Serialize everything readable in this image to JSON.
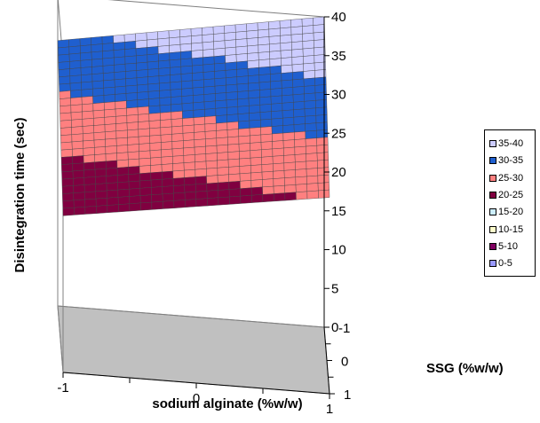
{
  "chart_data": {
    "type": "surface",
    "title": "",
    "zlabel": "Disintegration time (sec)",
    "xlabel": "sodium alginate (%w/w)",
    "ylabel": "SSG (%w/w)",
    "zlim": [
      0,
      40
    ],
    "z_ticks": [
      "0",
      "5",
      "10",
      "15",
      "20",
      "25",
      "30",
      "35",
      "40"
    ],
    "x_ticks": [
      "-1",
      "0",
      "1"
    ],
    "y_ticks": [
      "-1",
      "0",
      "1"
    ],
    "grid": false,
    "surface": {
      "x": [
        -1,
        1
      ],
      "y": [
        -1,
        1
      ],
      "z": [
        [
          34.2,
          40.0
        ],
        [
          20.2,
          25.3
        ]
      ]
    },
    "legend": {
      "placement": "right",
      "entries": [
        {
          "label": "35-40",
          "color": "#ccccff"
        },
        {
          "label": "30-35",
          "color": "#1f5fcf"
        },
        {
          "label": "25-30",
          "color": "#ff8080"
        },
        {
          "label": "20-25",
          "color": "#800040"
        },
        {
          "label": "15-20",
          "color": "#cceeff"
        },
        {
          "label": "10-15",
          "color": "#ffffcc"
        },
        {
          "label": "5-10",
          "color": "#800060"
        },
        {
          "label": "0-5",
          "color": "#9999ff"
        }
      ]
    },
    "floor_color": "#c0c0c0"
  }
}
